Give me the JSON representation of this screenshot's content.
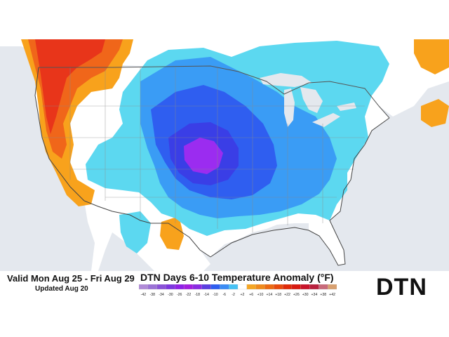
{
  "header": {
    "valid_text": "Valid Mon Aug 25 - Fri Aug 29",
    "updated_text": "Updated Aug 20",
    "title": "DTN Days 6-10 Temperature Anomaly (°F)"
  },
  "logo": {
    "text": "DTN"
  },
  "legend": {
    "ticks": [
      "-42",
      "-38",
      "-34",
      "-30",
      "-26",
      "-22",
      "-18",
      "-14",
      "-10",
      "-6",
      "-2",
      "+2",
      "+6",
      "+10",
      "+14",
      "+18",
      "+22",
      "+26",
      "+30",
      "+34",
      "+38",
      "+42"
    ],
    "colors": [
      "#b08ad8",
      "#9b72d6",
      "#8a52d8",
      "#7d36de",
      "#8f20e6",
      "#a21ee0",
      "#8a2be2",
      "#5a3ee0",
      "#2f5ef0",
      "#3a8cf5",
      "#46c2f5",
      "#ffffff",
      "#f5a623",
      "#f08a1c",
      "#ec6a12",
      "#e84a0c",
      "#e02a08",
      "#d81a10",
      "#c8142a",
      "#b8203e",
      "#c86a7a",
      "#d8a070"
    ]
  },
  "colors": {
    "ocean": "#e4e8ee",
    "land_neutral": "#ffffff",
    "cold_light": "#5cd8f0",
    "cold_mid": "#3a9cf5",
    "cold_deep": "#2f5ef0",
    "cold_deeper": "#3a3ee6",
    "cold_core": "#9b2cf0",
    "warm_light": "#f8a21c",
    "warm_mid": "#f0661a",
    "warm_deep": "#e8351a"
  }
}
